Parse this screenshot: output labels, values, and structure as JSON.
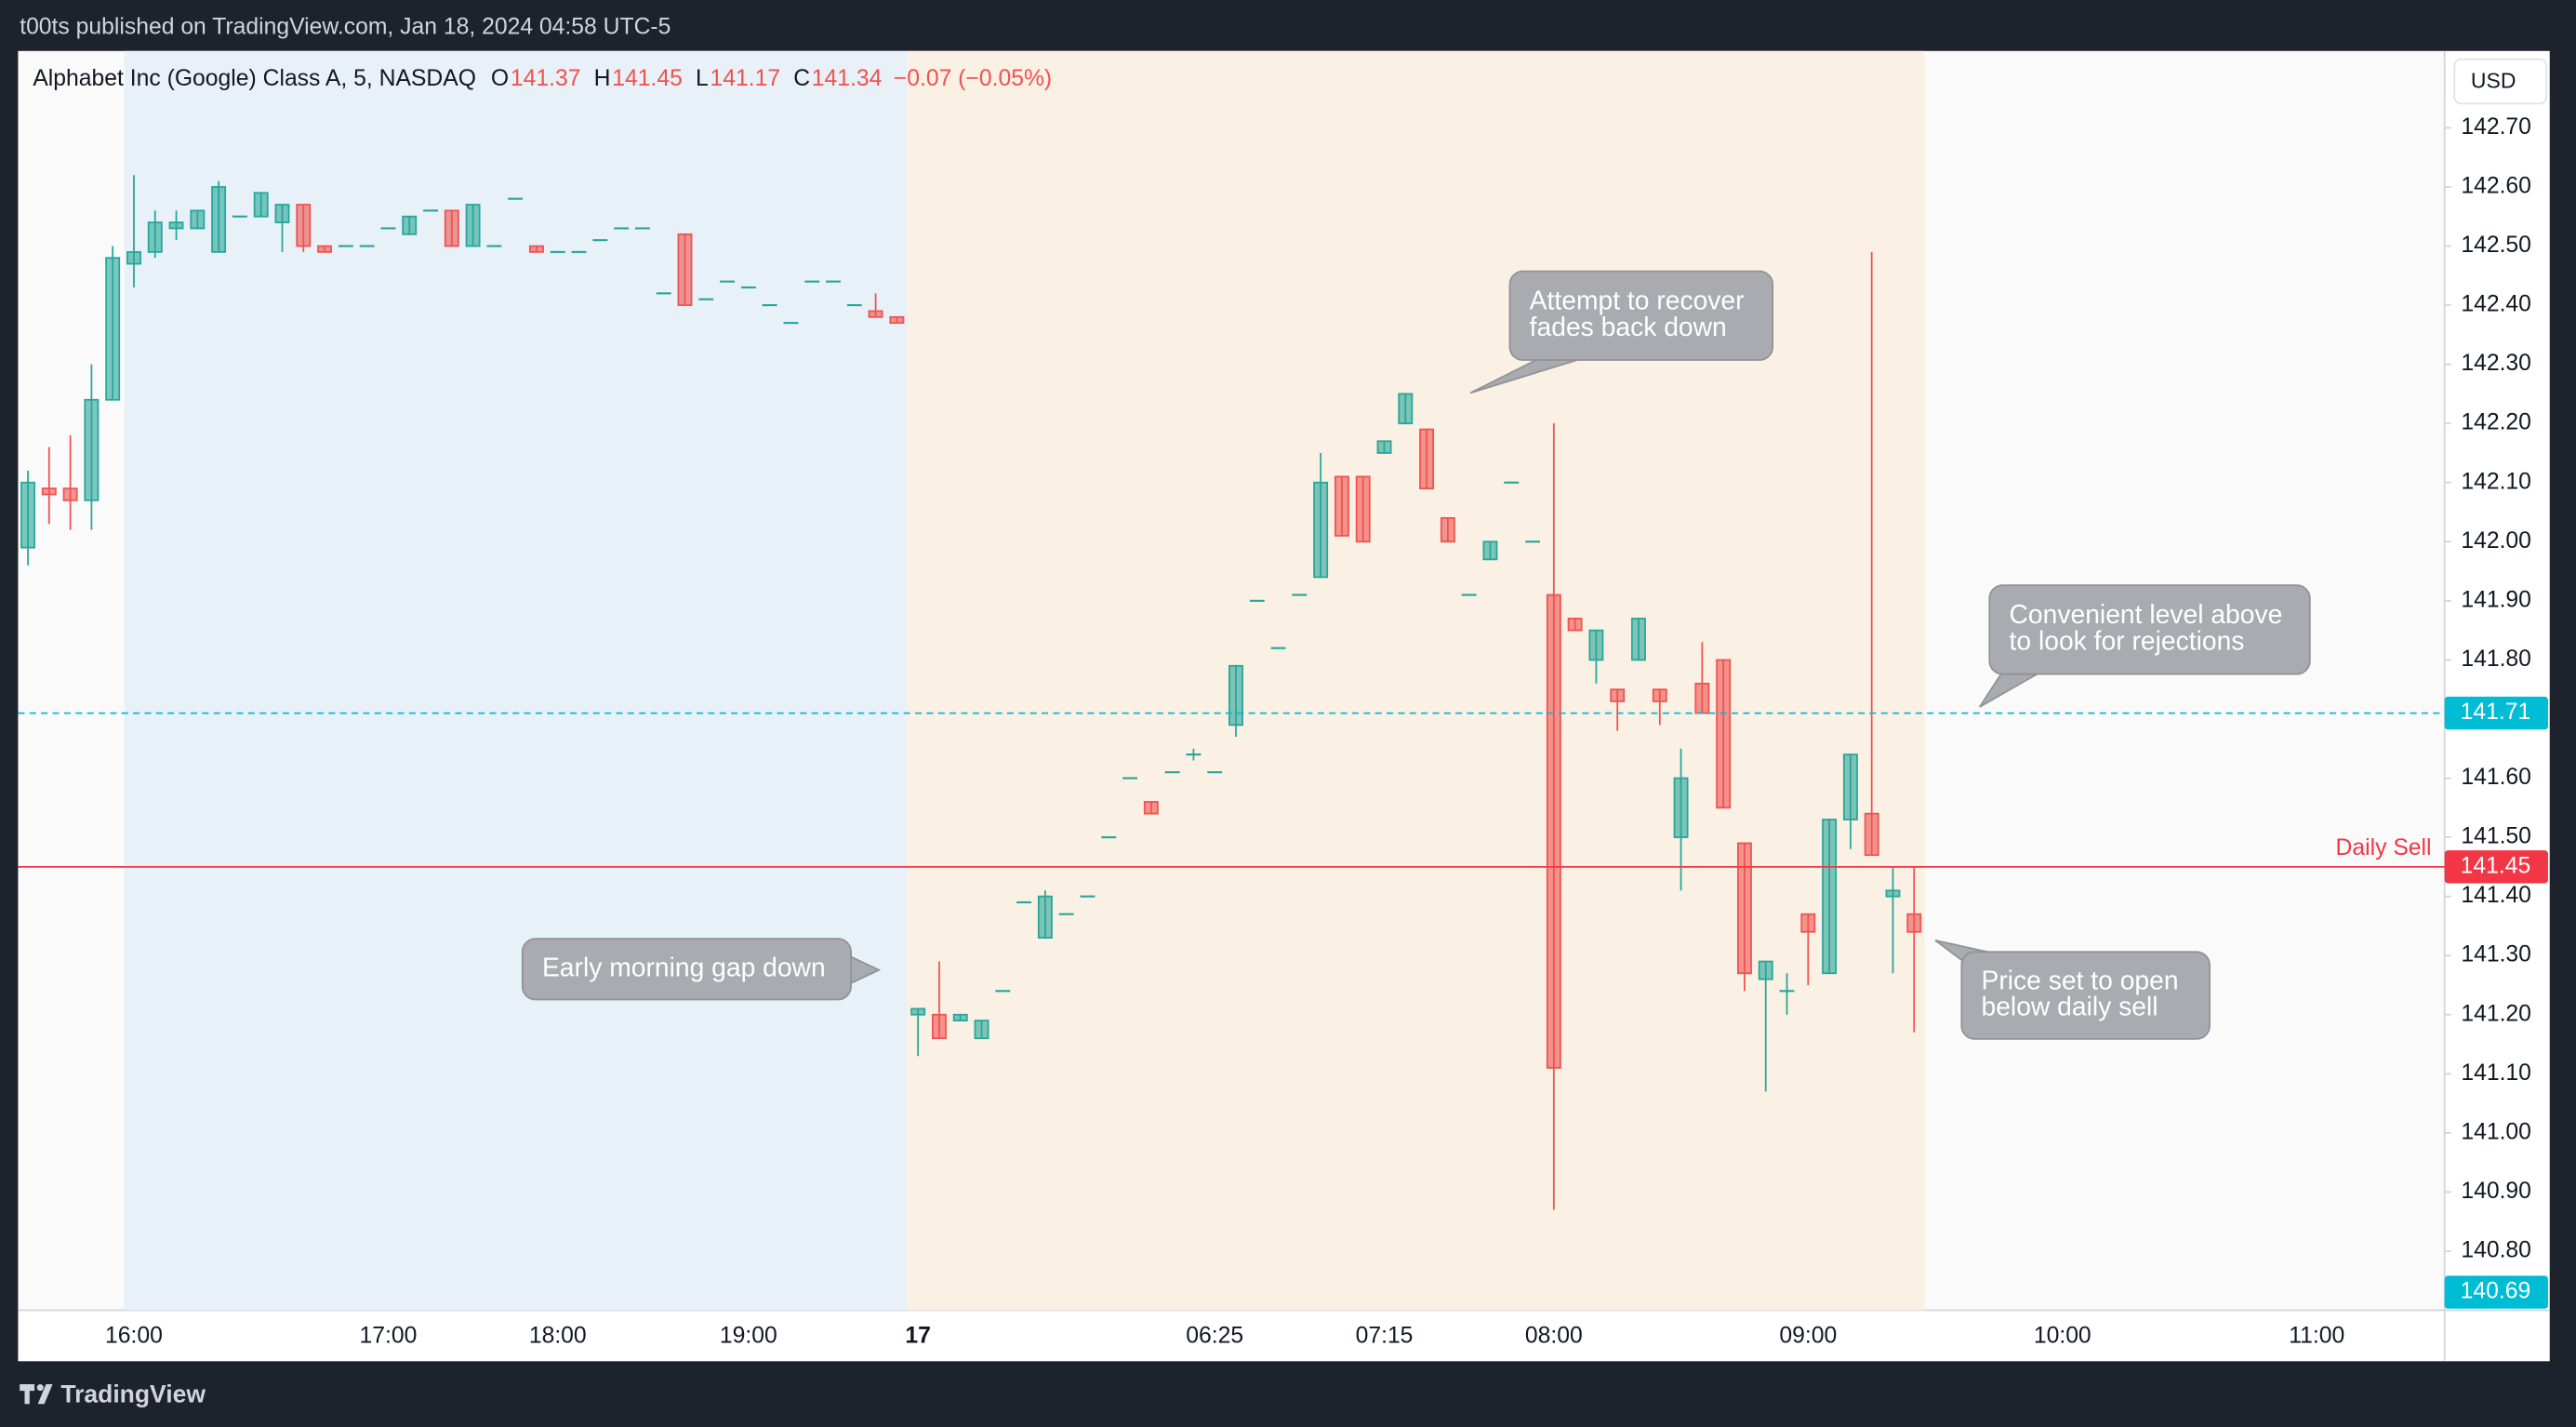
{
  "header": {
    "text": "t00ts published on TradingView.com, Jan 18, 2024 04:58 UTC-5"
  },
  "footer": {
    "brand": "TradingView"
  },
  "chart_data": {
    "type": "candlestick",
    "title": "Alphabet Inc (Google) Class A, 5, NASDAQ",
    "ohlc_legend": [
      {
        "label": "O",
        "value": 141.37
      },
      {
        "label": "H",
        "value": 141.45
      },
      {
        "label": "L",
        "value": 141.17
      },
      {
        "label": "C",
        "value": 141.34
      }
    ],
    "change": "−0.07 (−0.05%)",
    "currency": "USD",
    "categories": [
      null,
      null,
      null,
      null,
      null,
      "16:00",
      null,
      null,
      null,
      null,
      null,
      null,
      null,
      null,
      null,
      null,
      null,
      "17:00",
      null,
      null,
      null,
      null,
      null,
      null,
      null,
      "18:00",
      null,
      null,
      null,
      null,
      null,
      null,
      null,
      null,
      "19:00",
      null,
      null,
      null,
      null,
      null,
      null,
      null,
      "17",
      null,
      null,
      null,
      null,
      null,
      null,
      null,
      null,
      null,
      null,
      null,
      null,
      null,
      "06:25",
      null,
      null,
      null,
      null,
      null,
      null,
      null,
      "07:15",
      null,
      null,
      null,
      null,
      null,
      null,
      null,
      "08:00",
      null,
      null,
      null,
      null,
      null,
      null,
      null,
      null,
      null,
      null,
      null,
      "09:00",
      null,
      null,
      null,
      null,
      null,
      null,
      null,
      null,
      null,
      null,
      null,
      "10:00",
      null,
      null,
      null,
      null,
      null,
      null,
      null,
      null,
      null,
      null,
      null,
      "11:00",
      null,
      null,
      null,
      null,
      null,
      null
    ],
    "open": [
      141.99,
      142.09,
      142.09,
      142.07,
      142.24,
      142.47,
      142.49,
      142.53,
      142.53,
      142.49,
      142.55,
      142.55,
      142.54,
      142.57,
      142.5,
      142.5,
      142.5,
      142.53,
      142.52,
      142.56,
      142.56,
      142.5,
      142.5,
      142.58,
      142.5,
      142.49,
      142.49,
      142.51,
      142.53,
      142.53,
      142.42,
      142.52,
      142.41,
      142.44,
      142.43,
      142.4,
      142.37,
      142.44,
      142.44,
      142.4,
      142.39,
      142.38,
      141.2,
      141.2,
      141.19,
      141.16,
      141.24,
      141.39,
      141.33,
      141.37,
      141.4,
      141.5,
      141.6,
      141.56,
      141.61,
      141.64,
      141.61,
      141.69,
      141.9,
      141.82,
      141.91,
      141.94,
      142.11,
      142.11,
      142.15,
      142.2,
      142.19,
      142.04,
      141.91,
      141.97,
      142.1,
      142.0,
      141.91,
      141.87,
      141.8,
      141.75,
      141.8,
      141.75,
      141.5,
      141.76,
      141.8,
      141.49,
      141.26,
      141.24,
      141.37,
      141.27,
      141.53,
      141.54,
      141.4,
      141.37,
      null,
      null,
      null,
      null,
      null,
      null,
      null,
      null,
      null,
      null,
      null,
      null,
      null,
      null,
      null,
      null,
      null,
      null,
      null,
      null,
      null,
      null,
      null,
      null,
      null
    ],
    "high": [
      142.12,
      142.16,
      142.18,
      142.3,
      142.5,
      142.62,
      142.56,
      142.56,
      142.56,
      142.61,
      142.55,
      142.59,
      142.57,
      142.57,
      142.5,
      142.5,
      142.5,
      142.53,
      142.55,
      142.56,
      142.56,
      142.57,
      142.5,
      142.58,
      142.5,
      142.49,
      142.49,
      142.51,
      142.53,
      142.53,
      142.42,
      142.52,
      142.41,
      142.44,
      142.43,
      142.4,
      142.37,
      142.44,
      142.44,
      142.4,
      142.42,
      142.38,
      141.21,
      141.29,
      141.2,
      141.19,
      141.24,
      141.39,
      141.41,
      141.37,
      141.4,
      141.5,
      141.6,
      141.56,
      141.61,
      141.65,
      141.61,
      141.79,
      141.9,
      141.82,
      141.91,
      142.15,
      142.11,
      142.11,
      142.17,
      142.25,
      142.19,
      142.04,
      141.91,
      142.0,
      142.1,
      142.0,
      142.2,
      141.87,
      141.85,
      141.75,
      141.87,
      141.75,
      141.65,
      141.83,
      141.8,
      141.49,
      141.29,
      141.27,
      141.37,
      141.53,
      141.64,
      142.49,
      141.45,
      141.45,
      null,
      null,
      null,
      null,
      null,
      null,
      null,
      null,
      null,
      null,
      null,
      null,
      null,
      null,
      null,
      null,
      null,
      null,
      null,
      null,
      null,
      null,
      null,
      null,
      null
    ],
    "low": [
      141.96,
      142.03,
      142.02,
      142.02,
      142.24,
      142.43,
      142.48,
      142.51,
      142.53,
      142.49,
      142.55,
      142.55,
      142.49,
      142.49,
      142.49,
      142.5,
      142.5,
      142.53,
      142.52,
      142.56,
      142.5,
      142.5,
      142.5,
      142.58,
      142.49,
      142.49,
      142.49,
      142.51,
      142.53,
      142.53,
      142.42,
      142.4,
      142.41,
      142.44,
      142.43,
      142.4,
      142.37,
      142.44,
      142.44,
      142.4,
      142.38,
      142.37,
      141.13,
      141.16,
      141.19,
      141.16,
      141.24,
      141.39,
      141.33,
      141.37,
      141.4,
      141.5,
      141.6,
      141.54,
      141.61,
      141.63,
      141.61,
      141.67,
      141.9,
      141.82,
      141.91,
      141.94,
      142.01,
      142.0,
      142.15,
      142.2,
      142.09,
      142.0,
      141.91,
      141.97,
      142.1,
      142.0,
      140.87,
      141.85,
      141.76,
      141.68,
      141.8,
      141.69,
      141.41,
      141.71,
      141.55,
      141.24,
      141.07,
      141.2,
      141.25,
      141.27,
      141.48,
      141.47,
      141.27,
      141.17,
      null,
      null,
      null,
      null,
      null,
      null,
      null,
      null,
      null,
      null,
      null,
      null,
      null,
      null,
      null,
      null,
      null,
      null,
      null,
      null,
      null,
      null,
      null,
      null,
      null
    ],
    "close": [
      142.1,
      142.08,
      142.07,
      142.24,
      142.48,
      142.49,
      142.54,
      142.54,
      142.56,
      142.6,
      142.55,
      142.59,
      142.57,
      142.5,
      142.49,
      142.5,
      142.5,
      142.53,
      142.55,
      142.56,
      142.5,
      142.57,
      142.5,
      142.58,
      142.49,
      142.49,
      142.49,
      142.51,
      142.53,
      142.53,
      142.42,
      142.4,
      142.41,
      142.44,
      142.43,
      142.4,
      142.37,
      142.44,
      142.44,
      142.4,
      142.38,
      142.37,
      141.21,
      141.16,
      141.2,
      141.19,
      141.24,
      141.39,
      141.4,
      141.37,
      141.4,
      141.5,
      141.6,
      141.54,
      141.61,
      141.64,
      141.61,
      141.79,
      141.9,
      141.82,
      141.91,
      142.1,
      142.01,
      142.0,
      142.17,
      142.25,
      142.09,
      142.0,
      141.91,
      142.0,
      142.1,
      142.0,
      141.11,
      141.85,
      141.85,
      141.73,
      141.87,
      141.73,
      141.6,
      141.71,
      141.55,
      141.27,
      141.29,
      141.24,
      141.34,
      141.53,
      141.64,
      141.47,
      141.41,
      141.34,
      null,
      null,
      null,
      null,
      null,
      null,
      null,
      null,
      null,
      null,
      null,
      null,
      null,
      null,
      null,
      null,
      null,
      null,
      null,
      null,
      null,
      null,
      null,
      null,
      null
    ],
    "up_color": "#26a69a",
    "down_color": "#ef5350",
    "ylim": [
      140.7,
      142.83
    ],
    "yticks": [
      {
        "value": 140.8,
        "label": "140.80"
      },
      {
        "value": 140.9,
        "label": "140.90"
      },
      {
        "value": 141.0,
        "label": "141.00"
      },
      {
        "value": 141.1,
        "label": "141.10"
      },
      {
        "value": 141.2,
        "label": "141.20"
      },
      {
        "value": 141.3,
        "label": "141.30"
      },
      {
        "value": 141.4,
        "label": "141.40"
      },
      {
        "value": 141.5,
        "label": "141.50"
      },
      {
        "value": 141.6,
        "label": "141.60"
      },
      {
        "value": 141.7,
        "label": "141.70"
      },
      {
        "value": 141.8,
        "label": "141.80"
      },
      {
        "value": 141.9,
        "label": "141.90"
      },
      {
        "value": 142.0,
        "label": "142.00"
      },
      {
        "value": 142.1,
        "label": "142.10"
      },
      {
        "value": 142.2,
        "label": "142.20"
      },
      {
        "value": 142.3,
        "label": "142.30"
      },
      {
        "value": 142.4,
        "label": "142.40"
      },
      {
        "value": 142.5,
        "label": "142.50"
      },
      {
        "value": 142.6,
        "label": "142.60"
      },
      {
        "value": 142.7,
        "label": "142.70"
      }
    ],
    "grid": false,
    "levels": [
      {
        "value": 141.71,
        "color": "#00bcd4",
        "style": "dashed"
      },
      {
        "name": "Daily Sell",
        "value": 141.45,
        "color": "#f23645",
        "style": "solid"
      }
    ],
    "price_marker": {
      "value": 140.69,
      "color": "#00bcd4"
    },
    "annotations": [
      {
        "lines": [
          "Attempt to recover",
          "fades back down"
        ]
      },
      {
        "lines": [
          "Convenient level above",
          "to look for rejections"
        ]
      },
      {
        "lines": [
          "Early morning gap down"
        ]
      },
      {
        "lines": [
          "Price set to open",
          "below daily sell"
        ]
      }
    ]
  }
}
